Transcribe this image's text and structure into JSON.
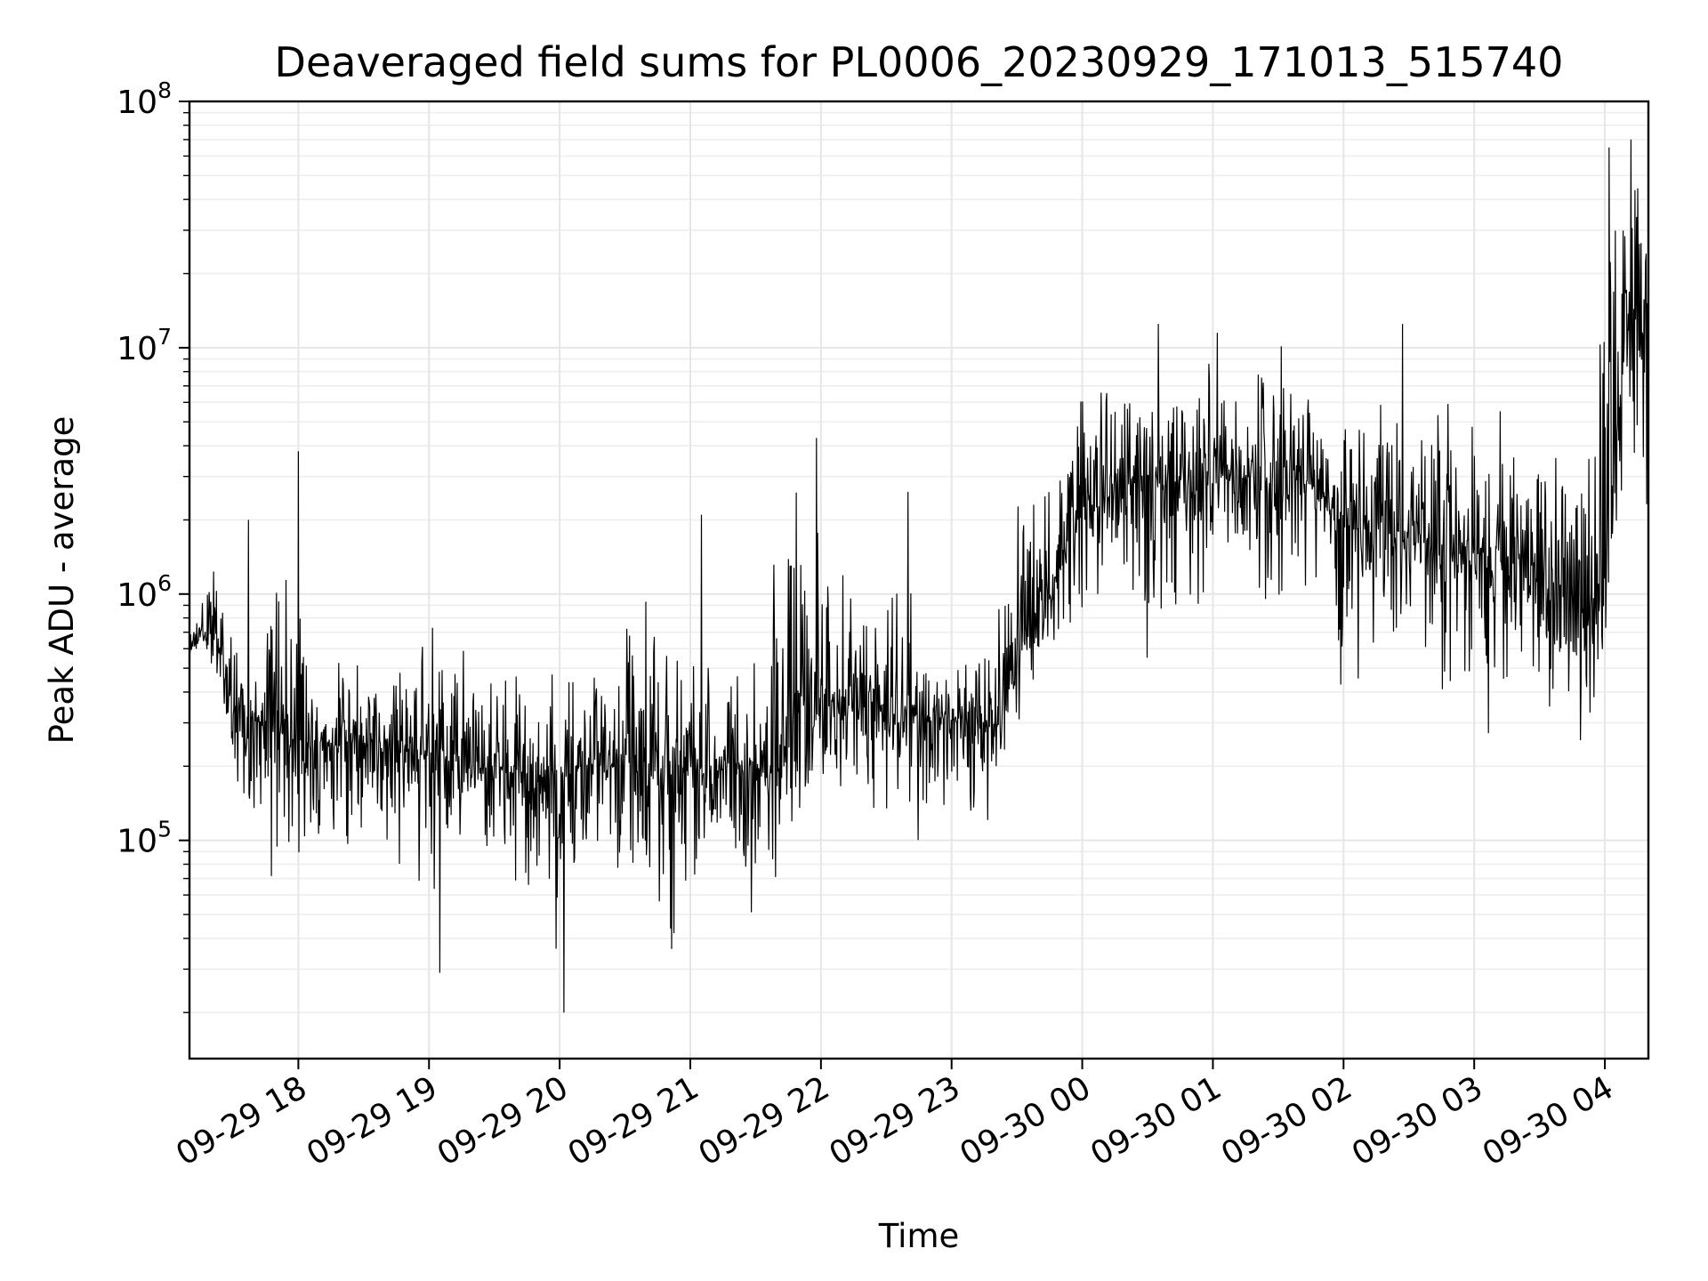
{
  "chart_data": {
    "type": "line",
    "title": "Deaveraged field sums for PL0006_20230929_171013_515740",
    "xlabel": "Time",
    "ylabel": "Peak ADU - average",
    "y_scale": "log",
    "ylim": [
      13000,
      100000000
    ],
    "xlim": [
      "2023-09-29 17:10",
      "2023-09-30 04:20"
    ],
    "grid": true,
    "x_ticks": [
      {
        "value": "2023-09-29 18:00",
        "label": "09-29 18"
      },
      {
        "value": "2023-09-29 19:00",
        "label": "09-29 19"
      },
      {
        "value": "2023-09-29 20:00",
        "label": "09-29 20"
      },
      {
        "value": "2023-09-29 21:00",
        "label": "09-29 21"
      },
      {
        "value": "2023-09-29 22:00",
        "label": "09-29 22"
      },
      {
        "value": "2023-09-29 23:00",
        "label": "09-29 23"
      },
      {
        "value": "2023-09-30 00:00",
        "label": "09-30 00"
      },
      {
        "value": "2023-09-30 01:00",
        "label": "09-30 01"
      },
      {
        "value": "2023-09-30 02:00",
        "label": "09-30 02"
      },
      {
        "value": "2023-09-30 03:00",
        "label": "09-30 03"
      },
      {
        "value": "2023-09-30 04:00",
        "label": "09-30 04"
      }
    ],
    "y_ticks": [
      {
        "value": 100000,
        "base": "10",
        "exp": "5"
      },
      {
        "value": 1000000,
        "base": "10",
        "exp": "6"
      },
      {
        "value": 10000000,
        "base": "10",
        "exp": "7"
      },
      {
        "value": 100000000,
        "base": "10",
        "exp": "8"
      }
    ],
    "series": [
      {
        "color": "#000000",
        "x": [
          "2023-09-29 17:10",
          "2023-09-29 17:20",
          "2023-09-29 17:30",
          "2023-09-29 17:40",
          "2023-09-29 17:50",
          "2023-09-29 18:00",
          "2023-09-29 18:10",
          "2023-09-29 18:20",
          "2023-09-29 18:30",
          "2023-09-29 18:40",
          "2023-09-29 18:50",
          "2023-09-29 19:00",
          "2023-09-29 19:10",
          "2023-09-29 19:20",
          "2023-09-29 19:30",
          "2023-09-29 19:40",
          "2023-09-29 19:50",
          "2023-09-29 20:00",
          "2023-09-29 20:10",
          "2023-09-29 20:20",
          "2023-09-29 20:30",
          "2023-09-29 20:40",
          "2023-09-29 20:50",
          "2023-09-29 21:00",
          "2023-09-29 21:10",
          "2023-09-29 21:20",
          "2023-09-29 21:30",
          "2023-09-29 21:40",
          "2023-09-29 21:50",
          "2023-09-29 22:00",
          "2023-09-29 22:10",
          "2023-09-29 22:20",
          "2023-09-29 22:30",
          "2023-09-29 22:40",
          "2023-09-29 22:50",
          "2023-09-29 23:00",
          "2023-09-29 23:10",
          "2023-09-29 23:20",
          "2023-09-29 23:30",
          "2023-09-29 23:40",
          "2023-09-29 23:50",
          "2023-09-30 00:00",
          "2023-09-30 00:10",
          "2023-09-30 00:20",
          "2023-09-30 00:30",
          "2023-09-30 00:40",
          "2023-09-30 00:50",
          "2023-09-30 01:00",
          "2023-09-30 01:10",
          "2023-09-30 01:20",
          "2023-09-30 01:30",
          "2023-09-30 01:40",
          "2023-09-30 01:50",
          "2023-09-30 02:00",
          "2023-09-30 02:10",
          "2023-09-30 02:20",
          "2023-09-30 02:30",
          "2023-09-30 02:40",
          "2023-09-30 02:50",
          "2023-09-30 03:00",
          "2023-09-30 03:10",
          "2023-09-30 03:20",
          "2023-09-30 03:30",
          "2023-09-30 03:40",
          "2023-09-30 03:50",
          "2023-09-30 04:00",
          "2023-09-30 04:10",
          "2023-09-30 04:20"
        ],
        "median": [
          600000,
          750000,
          350000,
          300000,
          280000,
          260000,
          250000,
          240000,
          260000,
          250000,
          230000,
          220000,
          210000,
          200000,
          200000,
          190000,
          185000,
          180000,
          200000,
          210000,
          200000,
          210000,
          200000,
          200000,
          190000,
          200000,
          190000,
          200000,
          220000,
          350000,
          380000,
          350000,
          330000,
          320000,
          320000,
          310000,
          300000,
          280000,
          550000,
          900000,
          1300000,
          2000000,
          2500000,
          2800000,
          3000000,
          2900000,
          2700000,
          2800000,
          3000000,
          3000000,
          2800000,
          2900000,
          2600000,
          2000000,
          1800000,
          1900000,
          1600000,
          1500000,
          1400000,
          1400000,
          1300000,
          1200000,
          1100000,
          1000000,
          900000,
          900000,
          15000000,
          10000000
        ],
        "low": [
          550000,
          480000,
          130000,
          80000,
          60000,
          60000,
          80000,
          70000,
          100000,
          70000,
          60000,
          30000,
          90000,
          110000,
          45000,
          50000,
          60000,
          20000,
          80000,
          90000,
          40000,
          50000,
          28000,
          60000,
          80000,
          40000,
          40000,
          60000,
          110000,
          120000,
          150000,
          100000,
          120000,
          70000,
          120000,
          110000,
          100000,
          100000,
          210000,
          380000,
          450000,
          700000,
          1000000,
          900000,
          250000,
          600000,
          600000,
          800000,
          850000,
          900000,
          800000,
          700000,
          950000,
          280000,
          500000,
          500000,
          500000,
          400000,
          250000,
          300000,
          230000,
          300000,
          250000,
          230000,
          200000,
          460000,
          3500000,
          1700000
        ],
        "high": [
          700000,
          2000000,
          800000,
          550000,
          3800000,
          850000,
          700000,
          700000,
          600000,
          550000,
          650000,
          1100000,
          600000,
          1200000,
          450000,
          650000,
          500000,
          600000,
          550000,
          600000,
          700000,
          2100000,
          600000,
          700000,
          550000,
          600000,
          700000,
          3000000,
          4300000,
          2000000,
          1400000,
          1000000,
          2500000,
          1500000,
          600000,
          500000,
          850000,
          1100000,
          2800000,
          3600000,
          6800000,
          8200000,
          8500000,
          12500000,
          8200000,
          7800000,
          11000000,
          9500000,
          7000000,
          8500000,
          11000000,
          9000000,
          6000000,
          8500000,
          7600000,
          7300000,
          11500000,
          8900000,
          7500000,
          6600000,
          6800000,
          5500000,
          5200000,
          4400000,
          5000000,
          38000000,
          70000000,
          54000000
        ],
        "spikes": [
          {
            "x": "2023-09-29 17:37",
            "y": 2000000
          },
          {
            "x": "2023-09-29 18:00",
            "y": 3800000
          },
          {
            "x": "2023-09-29 19:05",
            "y": 29000
          },
          {
            "x": "2023-09-29 20:02",
            "y": 20000
          },
          {
            "x": "2023-09-29 21:05",
            "y": 2100000
          },
          {
            "x": "2023-09-29 21:58",
            "y": 4300000
          },
          {
            "x": "2023-09-29 22:40",
            "y": 2600000
          },
          {
            "x": "2023-09-30 00:35",
            "y": 12500000
          },
          {
            "x": "2023-09-30 01:02",
            "y": 11500000
          },
          {
            "x": "2023-09-30 02:27",
            "y": 12500000
          },
          {
            "x": "2023-09-30 04:02",
            "y": 65000000
          },
          {
            "x": "2023-09-30 04:12",
            "y": 70000000
          }
        ]
      }
    ]
  }
}
